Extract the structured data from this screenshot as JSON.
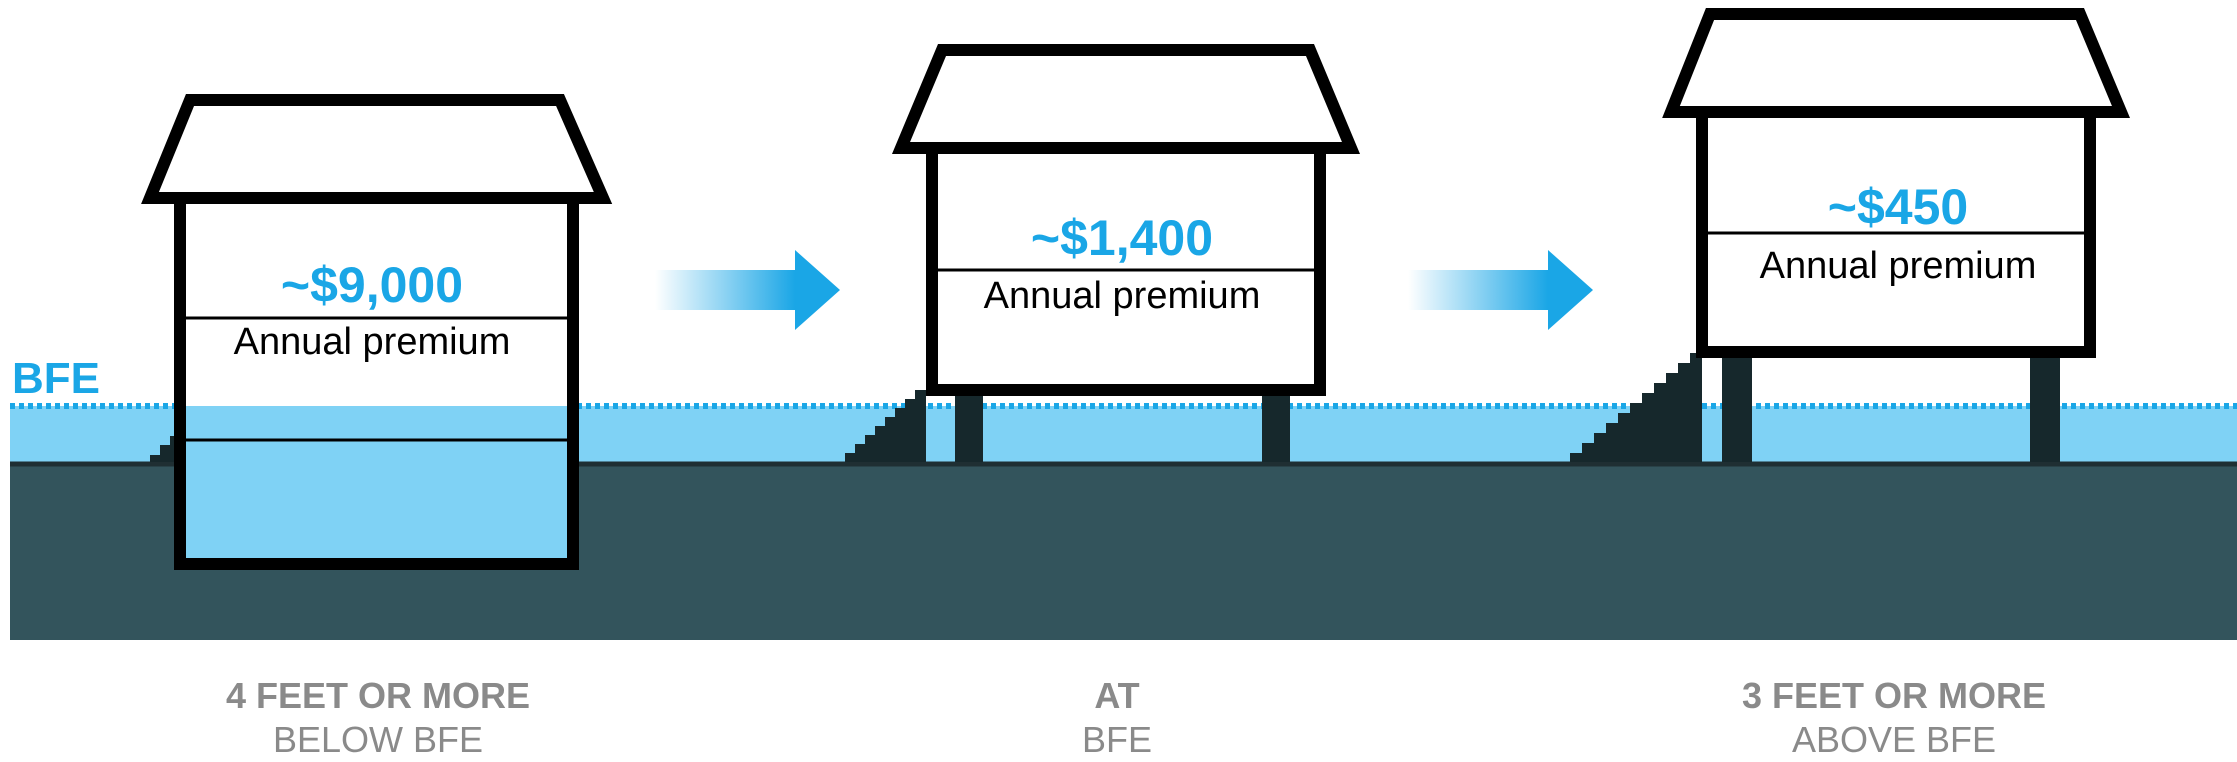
{
  "bfe_label": "BFE",
  "colors": {
    "accent": "#1aa6e6",
    "water": "#7fd2f5",
    "ground": "#33545c",
    "house_stroke": "#000000",
    "caption": "#8a8a8a"
  },
  "houses": [
    {
      "price": "~$9,000",
      "premium_label": "Annual premium",
      "caption_line1": "4 FEET OR MORE",
      "caption_line2": "BELOW BFE"
    },
    {
      "price": "~$1,400",
      "premium_label": "Annual premium",
      "caption_line1": "AT",
      "caption_line2": "BFE"
    },
    {
      "price": "~$450",
      "premium_label": "Annual premium",
      "caption_line1": "3 FEET OR MORE",
      "caption_line2": "ABOVE BFE"
    }
  ]
}
